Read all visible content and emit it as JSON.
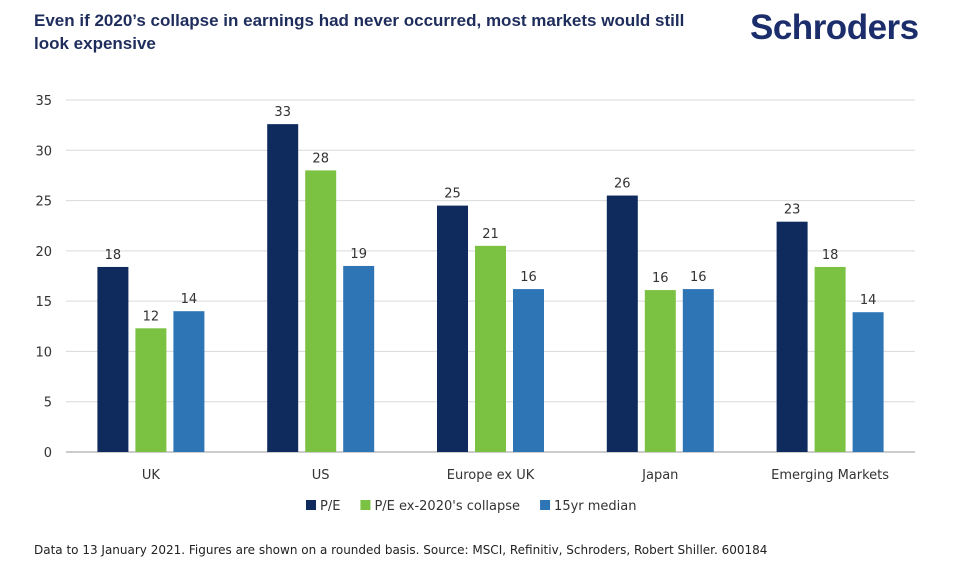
{
  "title": "Even if 2020’s collapse in earnings had never occurred, most markets would still look expensive",
  "logo": "Schroders",
  "footnote": "Data to 13 January 2021. Figures are shown on a rounded basis. Source: MSCI, Refinitiv, Schroders, Robert Shiller. 600184",
  "chart_data": {
    "type": "bar",
    "title": "",
    "xlabel": "",
    "ylabel": "",
    "ylim": [
      0,
      35
    ],
    "yticks": [
      0,
      5,
      10,
      15,
      20,
      25,
      30,
      35
    ],
    "grid": true,
    "legend_position": "bottom",
    "categories": [
      "UK",
      "US",
      "Europe ex UK",
      "Japan",
      "Emerging Markets"
    ],
    "series": [
      {
        "name": "P/E",
        "color": "#0f2a5c",
        "values": [
          18.4,
          32.6,
          24.5,
          25.5,
          22.9
        ],
        "labels": [
          "18",
          "33",
          "25",
          "26",
          "23"
        ]
      },
      {
        "name": "P/E ex-2020's collapse",
        "color": "#7cc242",
        "values": [
          12.3,
          28.0,
          20.5,
          16.1,
          18.4
        ],
        "labels": [
          "12",
          "28",
          "21",
          "16",
          "18"
        ]
      },
      {
        "name": "15yr median",
        "color": "#2e75b6",
        "values": [
          14.0,
          18.5,
          16.2,
          16.2,
          13.9
        ],
        "labels": [
          "14",
          "19",
          "16",
          "16",
          "14"
        ]
      }
    ]
  }
}
